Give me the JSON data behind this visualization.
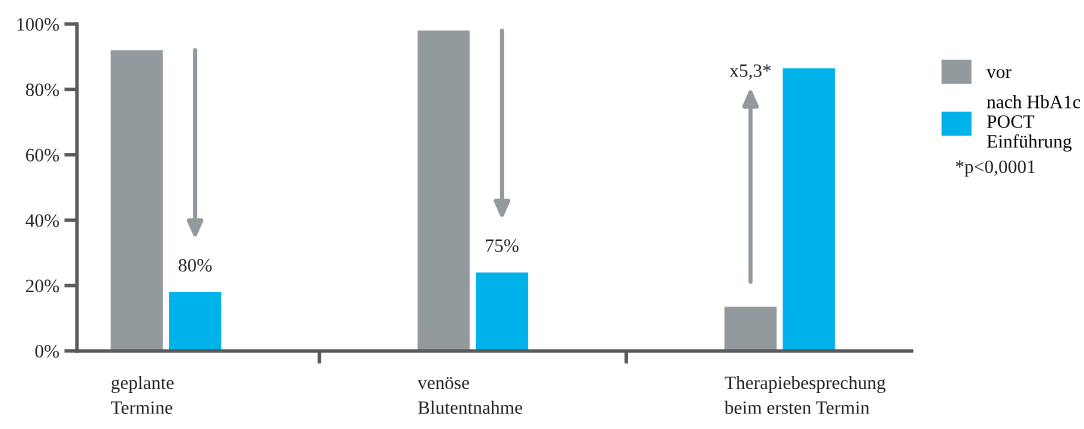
{
  "chart_data": {
    "type": "bar",
    "categories": [
      "geplante\nTermine",
      "venöse\nBlutentnahme",
      "Therapiebesprechung\nbeim ersten Termin"
    ],
    "series": [
      {
        "name": "vor",
        "color": "#939a9d",
        "values": [
          92,
          98,
          13.5
        ]
      },
      {
        "name": "nach HbA1c\nPOCT\nEinführung",
        "color": "#00b2ea",
        "values": [
          18,
          24,
          86.5
        ]
      }
    ],
    "ylim": [
      0,
      100
    ],
    "yticks": [
      {
        "value": 0,
        "label": "0%"
      },
      {
        "value": 20,
        "label": "20%"
      },
      {
        "value": 40,
        "label": "40%"
      },
      {
        "value": 60,
        "label": "60%"
      },
      {
        "value": 80,
        "label": "80%"
      },
      {
        "value": 100,
        "label": "100%"
      }
    ],
    "grid": false,
    "legend": "right",
    "annotations": [
      "80%",
      "75%",
      "x5,3*",
      "*p<0,0001"
    ]
  }
}
